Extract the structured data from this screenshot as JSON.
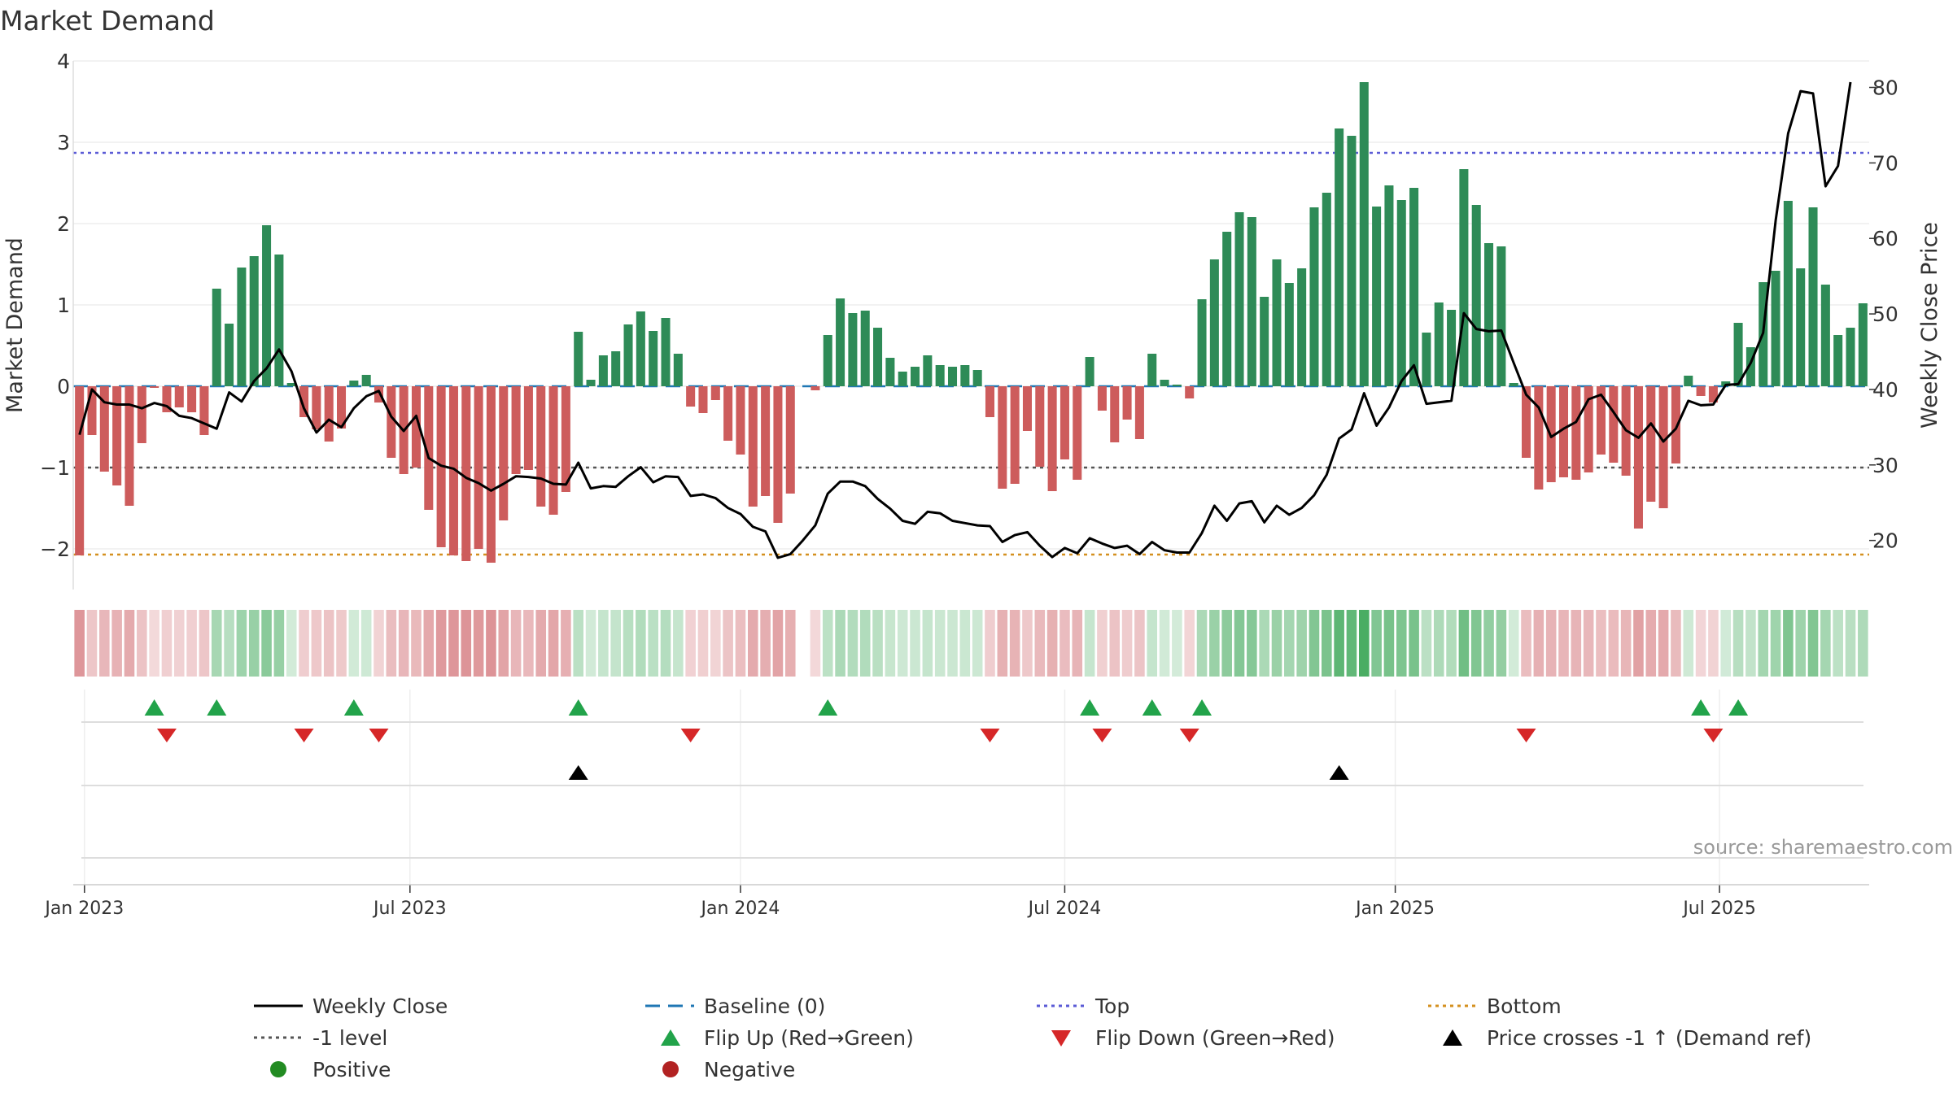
{
  "chart_data": {
    "type": "bar",
    "title": "Market Demand",
    "ylabel_left": "Market Demand",
    "ylabel_right": "Weekly Close Price",
    "source": "source: sharemaestro.com",
    "ylim_left": [
      -2.5,
      4
    ],
    "ylim_right": [
      13.5,
      83.5
    ],
    "yticks_left": [
      -2,
      -1,
      0,
      1,
      2,
      3,
      4
    ],
    "yticks_left_labels": [
      "−2",
      "−1",
      "0",
      "1",
      "2",
      "3",
      "4"
    ],
    "yticks_right": [
      20,
      30,
      40,
      50,
      60,
      70,
      80
    ],
    "yticks_right_labels": [
      "20",
      "30",
      "40",
      "50",
      "60",
      "70",
      "80"
    ],
    "x_tick_labels": [
      "Jan 2023",
      "Jul 2023",
      "Jan 2024",
      "Jul 2024",
      "Jan 2025",
      "Jul 2025"
    ],
    "x_tick_index": [
      0.4,
      26.5,
      53,
      79,
      105.5,
      131.5
    ],
    "levels": {
      "top": 2.87,
      "bottom": -2.07,
      "minus_one": -1,
      "baseline": 0
    },
    "colors": {
      "positive": "#2e8b57",
      "negative": "#cd5c5c",
      "price": "#000000",
      "top": "#5b5bd6",
      "bottom": "#d4901f",
      "minus_one": "#555555",
      "baseline": "#1f77b4",
      "flip_up": "#22a34a",
      "flip_down": "#d62728",
      "cross": "#000000",
      "legend_positive": "#228b22",
      "legend_negative": "#b22222"
    },
    "demand": [
      -2.08,
      -0.6,
      -1.05,
      -1.22,
      -1.47,
      -0.7,
      -0.02,
      -0.32,
      -0.26,
      -0.32,
      -0.6,
      1.2,
      0.77,
      1.46,
      1.6,
      1.98,
      1.62,
      0.04,
      -0.38,
      -0.53,
      -0.68,
      -0.52,
      0.07,
      0.14,
      -0.2,
      -0.88,
      -1.08,
      -1.0,
      -1.52,
      -1.98,
      -2.08,
      -2.15,
      -2.0,
      -2.17,
      -1.65,
      -1.08,
      -1.03,
      -1.48,
      -1.58,
      -1.3,
      0.67,
      0.08,
      0.38,
      0.43,
      0.76,
      0.92,
      0.68,
      0.84,
      0.4,
      -0.25,
      -0.33,
      -0.17,
      -0.67,
      -0.84,
      -1.48,
      -1.35,
      -1.68,
      -1.32,
      0.0,
      -0.05,
      0.63,
      1.08,
      0.9,
      0.93,
      0.72,
      0.35,
      0.18,
      0.24,
      0.38,
      0.26,
      0.24,
      0.26,
      0.2,
      -0.38,
      -1.26,
      -1.2,
      -0.55,
      -0.99,
      -1.29,
      -0.9,
      -1.15,
      0.36,
      -0.3,
      -0.69,
      -0.41,
      -0.65,
      0.4,
      0.08,
      0.02,
      -0.15,
      1.07,
      1.56,
      1.9,
      2.14,
      2.08,
      1.1,
      1.56,
      1.27,
      1.45,
      2.2,
      2.38,
      3.17,
      3.08,
      3.74,
      2.21,
      2.47,
      2.29,
      2.44,
      0.66,
      1.03,
      0.94,
      2.67,
      2.23,
      1.76,
      1.72,
      0.04,
      -0.88,
      -1.27,
      -1.18,
      -1.12,
      -1.15,
      -1.06,
      -0.84,
      -0.94,
      -1.1,
      -1.75,
      -1.42,
      -1.5,
      -0.95,
      0.13,
      -0.12,
      -0.2,
      0.06,
      0.78,
      0.48,
      1.28,
      1.42,
      2.28,
      1.45,
      2.2,
      1.25,
      0.63,
      0.72,
      1.02
    ],
    "price": [
      34,
      40,
      38.3,
      38,
      38,
      37.5,
      38.2,
      37.8,
      36.5,
      36.2,
      35.5,
      34.8,
      39.6,
      38.4,
      41.1,
      42.8,
      45.3,
      42.4,
      37.5,
      34.3,
      36,
      35,
      37.5,
      39.1,
      39.8,
      36.4,
      34.5,
      36.5,
      30.9,
      29.9,
      29.5,
      28.3,
      27.6,
      26.6,
      27.5,
      28.5,
      28.4,
      28.2,
      27.5,
      27.4,
      30.3,
      26.9,
      27.2,
      27.1,
      28.5,
      29.7,
      27.7,
      28.5,
      28.4,
      25.9,
      26.1,
      25.6,
      24.3,
      23.5,
      21.8,
      21.2,
      17.7,
      18.2,
      20,
      22,
      26.2,
      27.8,
      27.8,
      27.2,
      25.5,
      24.2,
      22.6,
      22.2,
      23.8,
      23.6,
      22.6,
      22.3,
      22,
      21.9,
      19.8,
      20.7,
      21.1,
      19.3,
      17.8,
      19,
      18.3,
      20.3,
      19.6,
      19,
      19.3,
      18.2,
      19.8,
      18.7,
      18.4,
      18.4,
      21,
      24.6,
      22.6,
      24.9,
      25.2,
      22.4,
      24.6,
      23.4,
      24.3,
      26,
      28.7,
      33.5,
      34.7,
      39.5,
      35.2,
      37.6,
      41.1,
      43.2,
      38.1,
      38.3,
      38.5,
      50.1,
      48,
      47.7,
      47.8,
      43.5,
      39.3,
      37.6,
      33.7,
      34.8,
      35.7,
      38.7,
      39.3,
      37,
      34.6,
      33.6,
      35.5,
      33.1,
      34.8,
      38.5,
      37.9,
      38,
      40.6,
      40.7,
      43.5,
      47.5,
      62.4,
      73.9,
      79.5,
      79.2,
      66.9,
      69.6,
      80.7
    ],
    "flip_up_index": [
      6,
      11,
      22,
      40,
      60,
      81,
      86,
      90,
      130,
      133
    ],
    "flip_down_index": [
      7,
      18,
      24,
      49,
      73,
      82,
      89,
      116,
      131
    ],
    "price_cross_index": [
      40,
      101
    ],
    "gap_index": [
      58
    ]
  },
  "legend": {
    "weekly_close": "Weekly Close",
    "baseline": "Baseline (0)",
    "top": "Top",
    "bottom": "Bottom",
    "minus_one": "-1 level",
    "flip_up": "Flip Up (Red→Green)",
    "flip_down": "Flip Down (Green→Red)",
    "price_cross": "Price crosses -1 ↑ (Demand ref)",
    "positive": "Positive",
    "negative": "Negative"
  }
}
